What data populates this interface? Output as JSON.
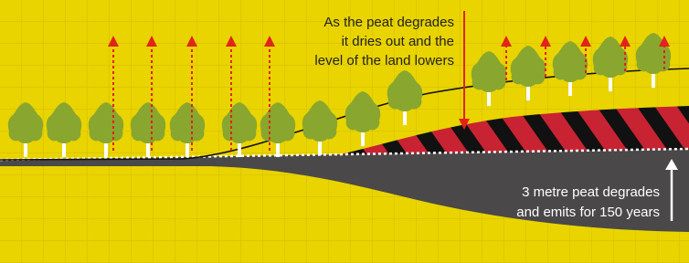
{
  "annotations": {
    "degrade_note": {
      "lines": [
        "As the peat degrades",
        "it dries out and the",
        "level of the land lowers"
      ]
    },
    "emit_note": {
      "lines": [
        "3 metre peat degrades",
        "and emits for 150 years"
      ]
    }
  }
}
